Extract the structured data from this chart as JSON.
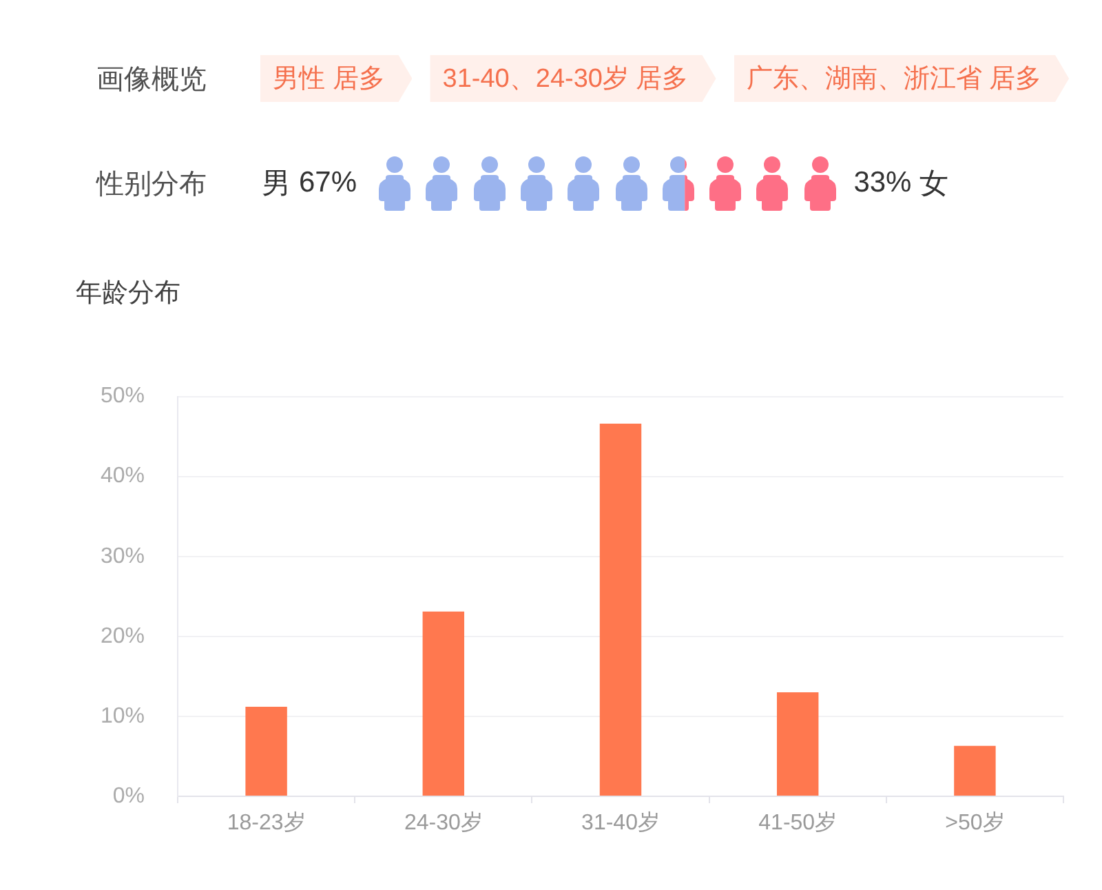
{
  "chart_data": [
    {
      "type": "other",
      "title": "画像概览",
      "annotations": [
        "男性 居多",
        "31-40、24-30岁 居多",
        "广东、湖南、浙江省 居多"
      ]
    },
    {
      "type": "other",
      "title": "性别分布",
      "categories": [
        "男",
        "女"
      ],
      "values": [
        67,
        33
      ],
      "value_labels": [
        "67%",
        "33%"
      ],
      "colors": [
        "#9bb4ee",
        "#fe6f86"
      ]
    },
    {
      "type": "bar",
      "title": "年龄分布",
      "categories": [
        "18-23岁",
        "24-30岁",
        "31-40岁",
        "41-50岁",
        ">50岁"
      ],
      "values": [
        11.2,
        23.1,
        46.6,
        13.0,
        6.3
      ],
      "color": "#ff784f",
      "ylim": [
        0,
        50
      ],
      "yticks": [
        {
          "value": 0,
          "label": "0%"
        },
        {
          "value": 10,
          "label": "10%"
        },
        {
          "value": 20,
          "label": "20%"
        },
        {
          "value": 30,
          "label": "30%"
        },
        {
          "value": 40,
          "label": "40%"
        },
        {
          "value": 50,
          "label": "50%"
        }
      ],
      "grid": "y"
    }
  ]
}
